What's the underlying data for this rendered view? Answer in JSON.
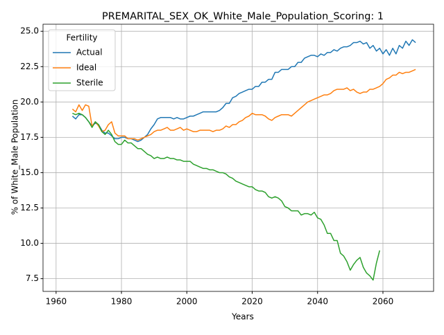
{
  "chart_data": {
    "type": "line",
    "title": "PREMARITAL_SEX_OK_White_Male_Population_Scoring: 1",
    "xlabel": "Years",
    "ylabel": "% of White_Male Population",
    "legend_title": "Fertility",
    "legend": "upper left",
    "grid": true,
    "xlim": [
      1956,
      2075.5
    ],
    "ylim": [
      6.6,
      25.5
    ],
    "xticks": [
      1960,
      1980,
      2000,
      2020,
      2040,
      2060
    ],
    "yticks": [
      7.5,
      {
        "value": 10,
        "label": "10.0"
      },
      12.5,
      {
        "value": 15,
        "label": "15.0"
      },
      17.5,
      {
        "value": 20,
        "label": "20.0"
      },
      22.5,
      {
        "value": 25,
        "label": "25.0"
      }
    ],
    "x": [
      1965,
      1966,
      1967,
      1968,
      1969,
      1970,
      1971,
      1972,
      1973,
      1974,
      1975,
      1976,
      1977,
      1978,
      1979,
      1980,
      1981,
      1982,
      1983,
      1984,
      1985,
      1986,
      1987,
      1988,
      1989,
      1990,
      1991,
      1992,
      1993,
      1994,
      1995,
      1996,
      1997,
      1998,
      1999,
      2000,
      2001,
      2002,
      2003,
      2004,
      2005,
      2006,
      2007,
      2008,
      2009,
      2010,
      2011,
      2012,
      2013,
      2014,
      2015,
      2016,
      2017,
      2018,
      2019,
      2020,
      2021,
      2022,
      2023,
      2024,
      2025,
      2026,
      2027,
      2028,
      2029,
      2030,
      2031,
      2032,
      2033,
      2034,
      2035,
      2036,
      2037,
      2038,
      2039,
      2040,
      2041,
      2042,
      2043,
      2044,
      2045,
      2046,
      2047,
      2048,
      2049,
      2050,
      2051,
      2052,
      2053,
      2054,
      2055,
      2056,
      2057,
      2058,
      2059,
      2060,
      2061,
      2062,
      2063,
      2064,
      2065,
      2066,
      2067,
      2068,
      2069,
      2070
    ],
    "series": [
      {
        "name": "Actual",
        "color": "#1f77b4",
        "values": [
          19.0,
          18.8,
          19.1,
          19.1,
          18.9,
          18.6,
          18.3,
          18.5,
          18.4,
          18.0,
          17.8,
          17.8,
          17.6,
          17.4,
          17.4,
          17.5,
          17.5,
          17.4,
          17.4,
          17.3,
          17.2,
          17.3,
          17.5,
          17.7,
          18.1,
          18.4,
          18.8,
          18.9,
          18.9,
          18.9,
          18.9,
          18.8,
          18.9,
          18.8,
          18.8,
          18.9,
          19.0,
          19.0,
          19.1,
          19.2,
          19.3,
          19.3,
          19.3,
          19.3,
          19.3,
          19.4,
          19.6,
          19.9,
          19.9,
          20.3,
          20.4,
          20.6,
          20.7,
          20.8,
          20.9,
          20.9,
          21.1,
          21.1,
          21.4,
          21.4,
          21.6,
          21.6,
          22.1,
          22.1,
          22.3,
          22.3,
          22.3,
          22.5,
          22.5,
          22.8,
          22.8,
          23.1,
          23.2,
          23.3,
          23.3,
          23.2,
          23.4,
          23.3,
          23.5,
          23.5,
          23.7,
          23.6,
          23.8,
          23.9,
          23.9,
          24.0,
          24.2,
          24.2,
          24.3,
          24.1,
          24.2,
          23.8,
          24.0,
          23.6,
          23.8,
          23.4,
          23.7,
          23.3,
          23.8,
          23.4,
          24.0,
          23.8,
          24.3,
          24.0,
          24.4,
          24.2
        ]
      },
      {
        "name": "Ideal",
        "color": "#ff7f0e",
        "values": [
          19.5,
          19.3,
          19.8,
          19.4,
          19.8,
          19.7,
          18.3,
          18.6,
          18.3,
          17.9,
          18.0,
          18.4,
          18.6,
          17.8,
          17.6,
          17.6,
          17.6,
          17.4,
          17.4,
          17.4,
          17.3,
          17.4,
          17.5,
          17.6,
          17.7,
          17.9,
          18.0,
          18.0,
          18.1,
          18.2,
          18.0,
          18.0,
          18.1,
          18.2,
          18.0,
          18.1,
          18.0,
          17.9,
          17.9,
          18.0,
          18.0,
          18.0,
          18.0,
          17.9,
          18.0,
          18.0,
          18.1,
          18.3,
          18.2,
          18.4,
          18.4,
          18.6,
          18.7,
          18.9,
          19.0,
          19.2,
          19.1,
          19.1,
          19.1,
          19.0,
          18.8,
          18.7,
          18.9,
          19.0,
          19.1,
          19.1,
          19.1,
          19.0,
          19.2,
          19.4,
          19.6,
          19.8,
          20.0,
          20.1,
          20.2,
          20.3,
          20.4,
          20.5,
          20.5,
          20.6,
          20.8,
          20.9,
          20.9,
          20.9,
          21.0,
          20.8,
          20.9,
          20.7,
          20.6,
          20.7,
          20.7,
          20.9,
          20.9,
          21.0,
          21.1,
          21.3,
          21.6,
          21.7,
          21.9,
          21.9,
          22.1,
          22.0,
          22.1,
          22.1,
          22.2,
          22.3
        ]
      },
      {
        "name": "Sterile",
        "color": "#2ca02c",
        "values": [
          19.2,
          19.1,
          19.2,
          19.1,
          18.9,
          18.6,
          18.2,
          18.6,
          18.4,
          17.9,
          17.7,
          18.0,
          17.7,
          17.2,
          17.0,
          17.0,
          17.3,
          17.1,
          17.1,
          16.9,
          16.7,
          16.7,
          16.5,
          16.3,
          16.2,
          16.0,
          16.1,
          16.0,
          16.0,
          16.1,
          16.0,
          16.0,
          15.9,
          15.9,
          15.8,
          15.8,
          15.8,
          15.6,
          15.5,
          15.4,
          15.3,
          15.3,
          15.2,
          15.2,
          15.1,
          15.0,
          15.0,
          14.9,
          14.7,
          14.6,
          14.4,
          14.3,
          14.2,
          14.1,
          14.0,
          14.0,
          13.8,
          13.7,
          13.7,
          13.6,
          13.3,
          13.2,
          13.3,
          13.2,
          13.0,
          12.6,
          12.5,
          12.3,
          12.3,
          12.3,
          12.0,
          12.1,
          12.1,
          12.0,
          12.2,
          11.8,
          11.7,
          11.3,
          10.7,
          10.7,
          10.2,
          10.2,
          9.3,
          9.1,
          8.7,
          8.1,
          8.5,
          8.8,
          9.0,
          8.3,
          7.9,
          7.7,
          7.4,
          8.6,
          9.5,
          null,
          null,
          null,
          null,
          null,
          null,
          null,
          null,
          null,
          null,
          null
        ]
      }
    ]
  }
}
